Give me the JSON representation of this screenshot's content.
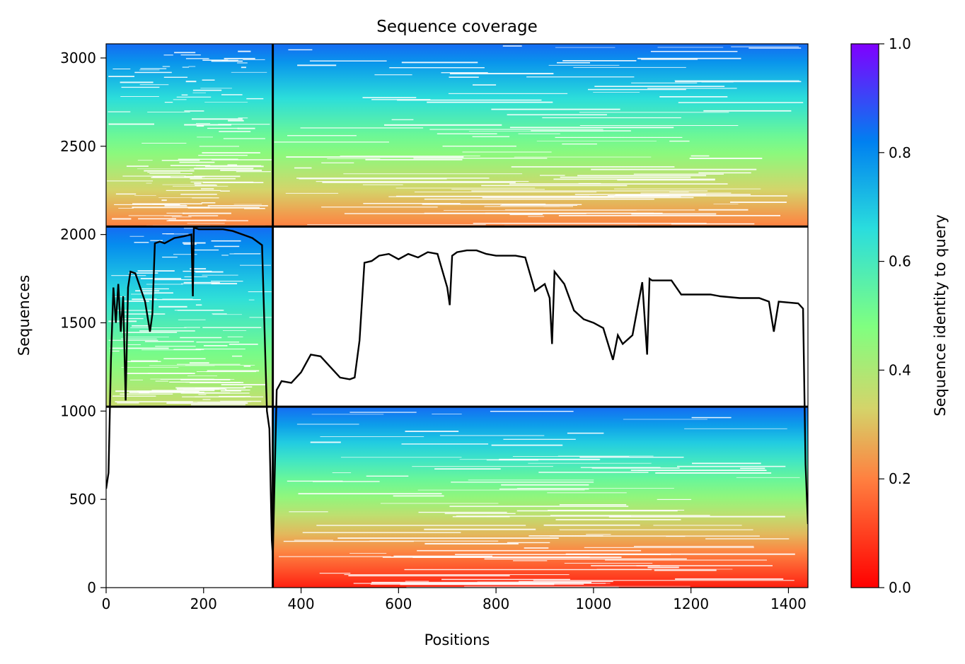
{
  "chart_data": {
    "type": "heatmap",
    "title": "Sequence coverage",
    "xlabel": "Positions",
    "ylabel": "Sequences",
    "xlim": [
      0,
      1440
    ],
    "ylim": [
      0,
      3080
    ],
    "x_ticks": [
      0,
      200,
      400,
      600,
      800,
      1000,
      1200,
      1400
    ],
    "y_ticks": [
      0,
      500,
      1000,
      1500,
      2000,
      2500,
      3000
    ],
    "grid": false,
    "colorbar": {
      "label": "Sequence identity to query",
      "range": [
        0,
        1
      ],
      "ticks": [
        0.0,
        0.2,
        0.4,
        0.6,
        0.8,
        1.0
      ],
      "colormap": "rainbow_r",
      "colors": [
        "#ff0000",
        "#ff8040",
        "#d4d46a",
        "#80ff80",
        "#2adddd",
        "#0080f0",
        "#8000ff"
      ]
    },
    "domain_boundaries": {
      "x": [
        342
      ],
      "y": [
        1025,
        2045
      ]
    },
    "blocks": [
      {
        "x": [
          0,
          342
        ],
        "y": [
          2045,
          3080
        ],
        "identity_bottom": 0.2,
        "identity_top": 0.85
      },
      {
        "x": [
          342,
          1440
        ],
        "y": [
          2045,
          3080
        ],
        "identity_bottom": 0.2,
        "identity_top": 0.85
      },
      {
        "x": [
          0,
          342
        ],
        "y": [
          1025,
          2045
        ],
        "identity_bottom": 0.35,
        "identity_top": 0.85
      },
      {
        "x": [
          342,
          1440
        ],
        "y": [
          0,
          1025
        ],
        "identity_bottom": 0.05,
        "identity_top": 0.85
      }
    ],
    "coverage_line": {
      "x": [
        0,
        5,
        10,
        15,
        20,
        25,
        30,
        35,
        40,
        45,
        50,
        60,
        70,
        80,
        90,
        95,
        100,
        110,
        120,
        140,
        160,
        175,
        178,
        180,
        190,
        200,
        220,
        240,
        260,
        280,
        300,
        320,
        330,
        335,
        340,
        342,
        350,
        360,
        380,
        400,
        420,
        440,
        460,
        480,
        500,
        510,
        520,
        530,
        545,
        560,
        580,
        600,
        620,
        640,
        660,
        680,
        700,
        705,
        710,
        720,
        740,
        760,
        780,
        800,
        820,
        840,
        860,
        880,
        900,
        910,
        915,
        920,
        940,
        960,
        980,
        1000,
        1020,
        1040,
        1050,
        1060,
        1080,
        1100,
        1110,
        1115,
        1120,
        1140,
        1160,
        1180,
        1200,
        1220,
        1240,
        1260,
        1300,
        1340,
        1360,
        1370,
        1380,
        1420,
        1430,
        1435,
        1440
      ],
      "y": [
        560,
        650,
        1300,
        1700,
        1500,
        1720,
        1450,
        1650,
        1060,
        1700,
        1790,
        1780,
        1700,
        1620,
        1450,
        1550,
        1950,
        1960,
        1950,
        1980,
        1990,
        2000,
        1650,
        2040,
        2030,
        2030,
        2030,
        2030,
        2020,
        2000,
        1980,
        1940,
        1000,
        900,
        270,
        180,
        1120,
        1170,
        1160,
        1220,
        1320,
        1310,
        1250,
        1190,
        1180,
        1190,
        1400,
        1840,
        1850,
        1880,
        1890,
        1860,
        1890,
        1870,
        1900,
        1890,
        1700,
        1600,
        1880,
        1900,
        1910,
        1910,
        1890,
        1880,
        1880,
        1880,
        1870,
        1680,
        1720,
        1640,
        1380,
        1790,
        1720,
        1570,
        1520,
        1500,
        1470,
        1290,
        1430,
        1380,
        1430,
        1730,
        1320,
        1750,
        1740,
        1740,
        1740,
        1660,
        1660,
        1660,
        1660,
        1650,
        1640,
        1640,
        1620,
        1450,
        1620,
        1610,
        1580,
        700,
        360
      ]
    }
  }
}
